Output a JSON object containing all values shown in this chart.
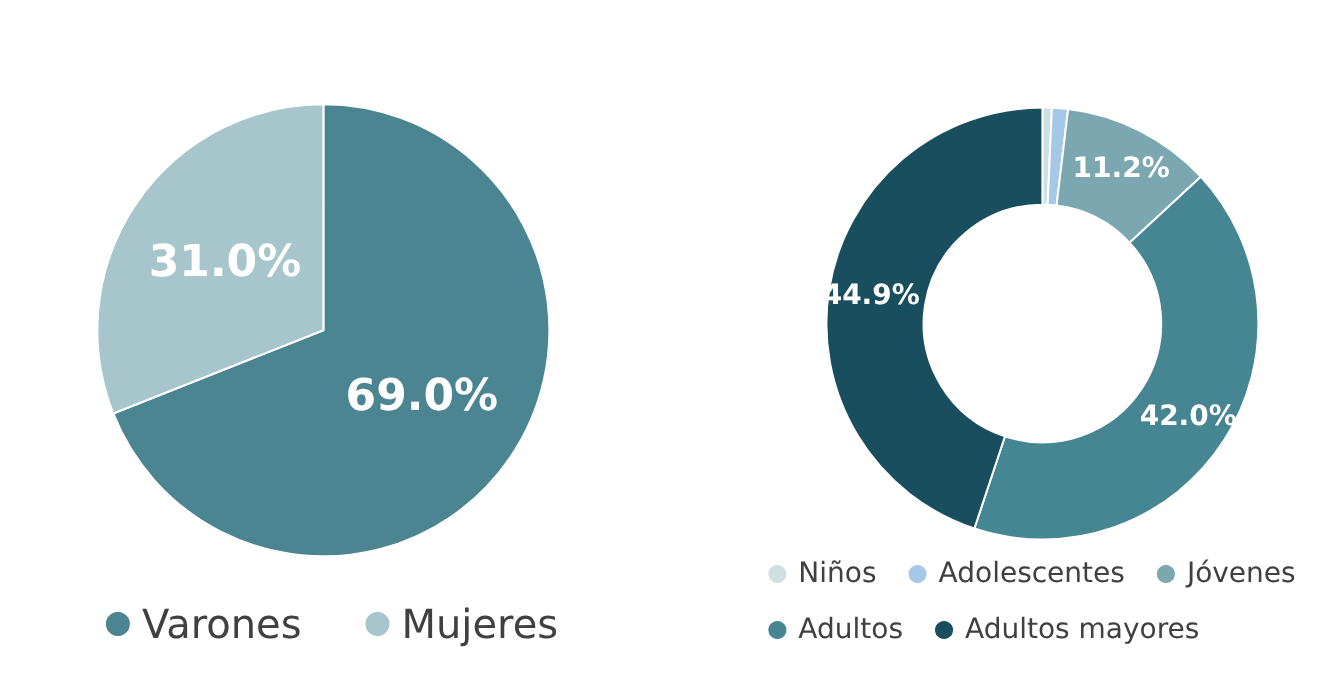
{
  "chart_data": [
    {
      "type": "pie",
      "categories": [
        "Varones",
        "Mujeres"
      ],
      "values": [
        69.0,
        31.0
      ],
      "colors": [
        "#4a8591",
        "#a6c6cb"
      ],
      "value_labels": [
        "69.0%",
        "31.0%"
      ],
      "legend": "bottom"
    },
    {
      "type": "donut",
      "categories": [
        "Niños",
        "Adolescentes",
        "Jóvenes",
        "Adultos",
        "Adultos mayores"
      ],
      "values": [
        0.7,
        1.2,
        11.2,
        42.0,
        44.9
      ],
      "colors": [
        "#d0dfe2",
        "#a6c8e8",
        "#7aa7b0",
        "#468592",
        "#184e5e"
      ],
      "value_labels": [
        null,
        null,
        "11.2%",
        "42.0%",
        "44.9%"
      ],
      "legend": "bottom"
    }
  ]
}
